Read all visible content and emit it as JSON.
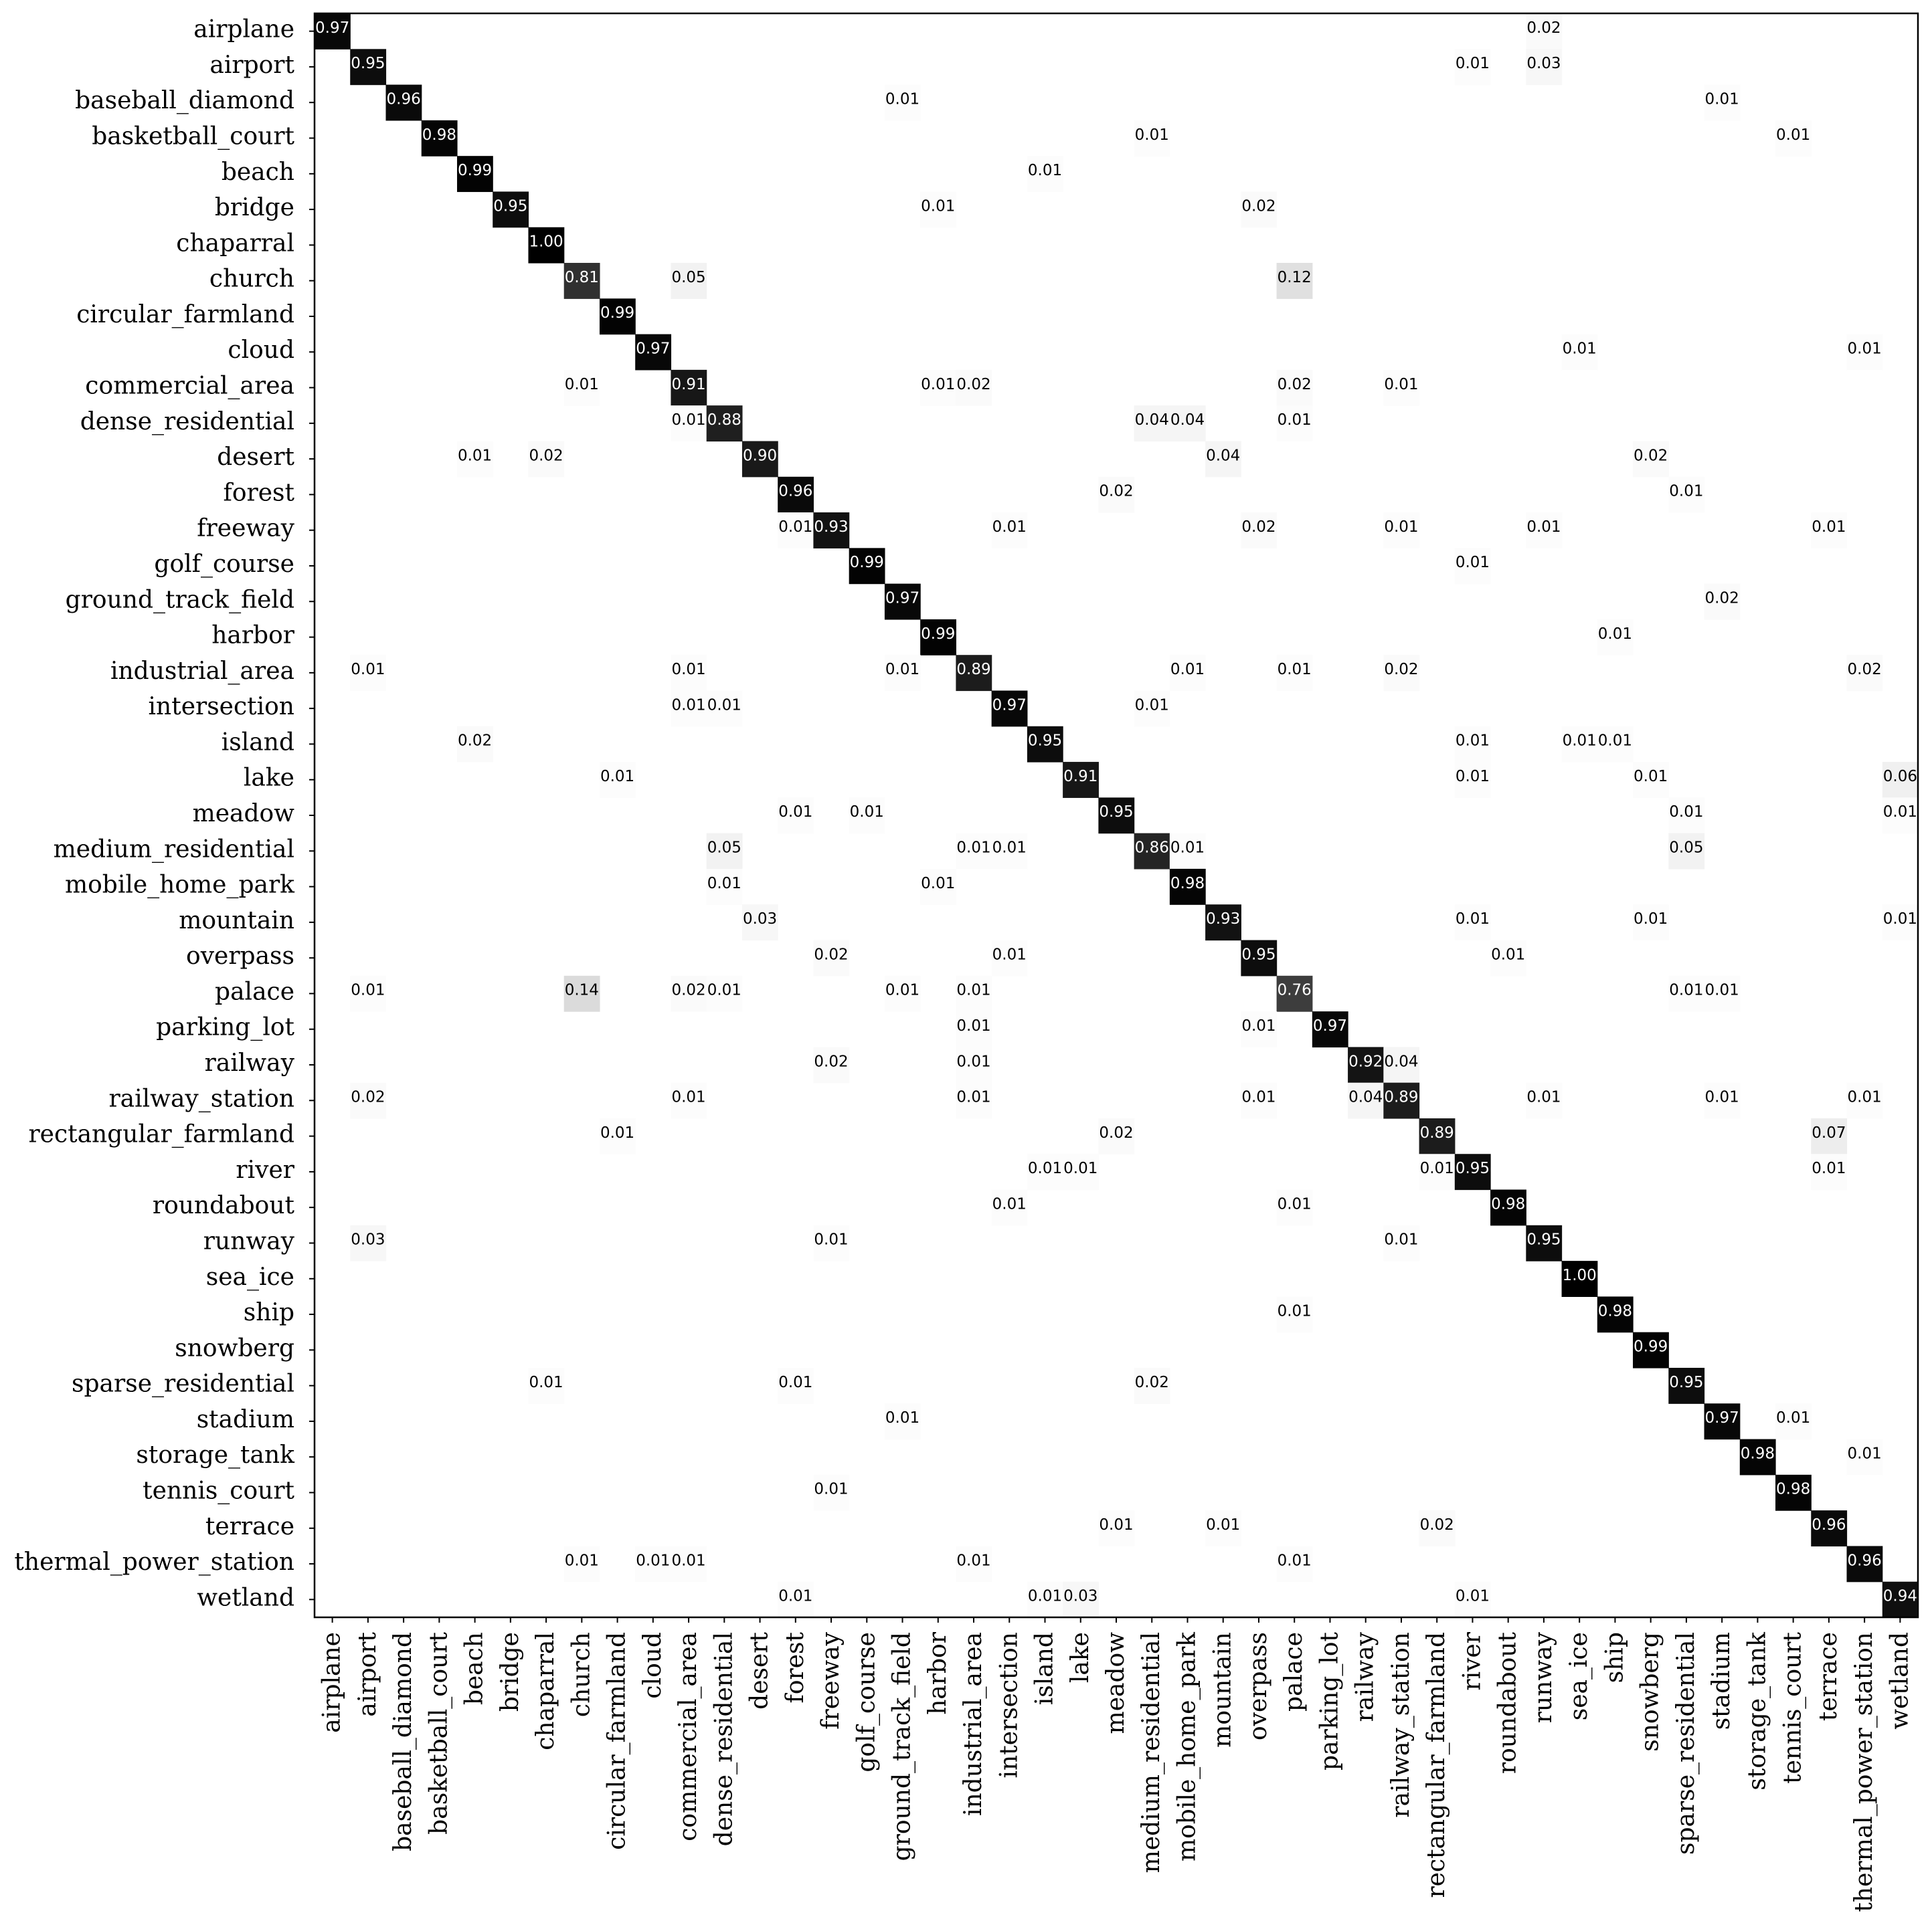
{
  "chart_data": {
    "type": "heatmap",
    "title": "",
    "xlabel": "",
    "ylabel": "",
    "value_range": [
      0,
      1
    ],
    "colormap": "white-to-black (Greys)",
    "labels": [
      "airplane",
      "airport",
      "baseball_diamond",
      "basketball_court",
      "beach",
      "bridge",
      "chaparral",
      "church",
      "circular_farmland",
      "cloud",
      "commercial_area",
      "dense_residential",
      "desert",
      "forest",
      "freeway",
      "golf_course",
      "ground_track_field",
      "harbor",
      "industrial_area",
      "intersection",
      "island",
      "lake",
      "meadow",
      "medium_residential",
      "mobile_home_park",
      "mountain",
      "overpass",
      "palace",
      "parking_lot",
      "railway",
      "railway_station",
      "rectangular_farmland",
      "river",
      "roundabout",
      "runway",
      "sea_ice",
      "ship",
      "snowberg",
      "sparse_residential",
      "stadium",
      "storage_tank",
      "tennis_court",
      "terrace",
      "thermal_power_station",
      "wetland"
    ],
    "cells": [
      {
        "r": 0,
        "c": 0,
        "v": 0.97
      },
      {
        "r": 0,
        "c": 34,
        "v": 0.02
      },
      {
        "r": 1,
        "c": 1,
        "v": 0.95
      },
      {
        "r": 1,
        "c": 32,
        "v": 0.01
      },
      {
        "r": 1,
        "c": 34,
        "v": 0.03
      },
      {
        "r": 2,
        "c": 2,
        "v": 0.96
      },
      {
        "r": 2,
        "c": 16,
        "v": 0.01
      },
      {
        "r": 2,
        "c": 39,
        "v": 0.01
      },
      {
        "r": 3,
        "c": 3,
        "v": 0.98
      },
      {
        "r": 3,
        "c": 23,
        "v": 0.01
      },
      {
        "r": 3,
        "c": 41,
        "v": 0.01
      },
      {
        "r": 4,
        "c": 4,
        "v": 0.99
      },
      {
        "r": 4,
        "c": 20,
        "v": 0.01
      },
      {
        "r": 5,
        "c": 5,
        "v": 0.95
      },
      {
        "r": 5,
        "c": 17,
        "v": 0.01
      },
      {
        "r": 5,
        "c": 26,
        "v": 0.02
      },
      {
        "r": 6,
        "c": 6,
        "v": 1.0
      },
      {
        "r": 7,
        "c": 7,
        "v": 0.81
      },
      {
        "r": 7,
        "c": 10,
        "v": 0.05
      },
      {
        "r": 7,
        "c": 27,
        "v": 0.12
      },
      {
        "r": 8,
        "c": 8,
        "v": 0.99
      },
      {
        "r": 9,
        "c": 9,
        "v": 0.97
      },
      {
        "r": 9,
        "c": 35,
        "v": 0.01
      },
      {
        "r": 9,
        "c": 43,
        "v": 0.01
      },
      {
        "r": 10,
        "c": 7,
        "v": 0.01
      },
      {
        "r": 10,
        "c": 10,
        "v": 0.91
      },
      {
        "r": 10,
        "c": 17,
        "v": 0.01
      },
      {
        "r": 10,
        "c": 18,
        "v": 0.02
      },
      {
        "r": 10,
        "c": 27,
        "v": 0.02
      },
      {
        "r": 10,
        "c": 30,
        "v": 0.01
      },
      {
        "r": 11,
        "c": 10,
        "v": 0.01
      },
      {
        "r": 11,
        "c": 11,
        "v": 0.88
      },
      {
        "r": 11,
        "c": 23,
        "v": 0.04
      },
      {
        "r": 11,
        "c": 24,
        "v": 0.04
      },
      {
        "r": 11,
        "c": 27,
        "v": 0.01
      },
      {
        "r": 12,
        "c": 4,
        "v": 0.01
      },
      {
        "r": 12,
        "c": 6,
        "v": 0.02
      },
      {
        "r": 12,
        "c": 12,
        "v": 0.9
      },
      {
        "r": 12,
        "c": 25,
        "v": 0.04
      },
      {
        "r": 12,
        "c": 37,
        "v": 0.02
      },
      {
        "r": 13,
        "c": 13,
        "v": 0.96
      },
      {
        "r": 13,
        "c": 22,
        "v": 0.02
      },
      {
        "r": 13,
        "c": 38,
        "v": 0.01
      },
      {
        "r": 14,
        "c": 13,
        "v": 0.01
      },
      {
        "r": 14,
        "c": 14,
        "v": 0.93
      },
      {
        "r": 14,
        "c": 19,
        "v": 0.01
      },
      {
        "r": 14,
        "c": 26,
        "v": 0.02
      },
      {
        "r": 14,
        "c": 30,
        "v": 0.01
      },
      {
        "r": 14,
        "c": 34,
        "v": 0.01
      },
      {
        "r": 14,
        "c": 42,
        "v": 0.01
      },
      {
        "r": 15,
        "c": 15,
        "v": 0.99
      },
      {
        "r": 15,
        "c": 32,
        "v": 0.01
      },
      {
        "r": 16,
        "c": 16,
        "v": 0.97
      },
      {
        "r": 16,
        "c": 39,
        "v": 0.02
      },
      {
        "r": 17,
        "c": 17,
        "v": 0.99
      },
      {
        "r": 17,
        "c": 36,
        "v": 0.01
      },
      {
        "r": 18,
        "c": 1,
        "v": 0.01
      },
      {
        "r": 18,
        "c": 10,
        "v": 0.01
      },
      {
        "r": 18,
        "c": 16,
        "v": 0.01
      },
      {
        "r": 18,
        "c": 18,
        "v": 0.89
      },
      {
        "r": 18,
        "c": 24,
        "v": 0.01
      },
      {
        "r": 18,
        "c": 27,
        "v": 0.01
      },
      {
        "r": 18,
        "c": 30,
        "v": 0.02
      },
      {
        "r": 18,
        "c": 43,
        "v": 0.02
      },
      {
        "r": 19,
        "c": 10,
        "v": 0.01
      },
      {
        "r": 19,
        "c": 11,
        "v": 0.01
      },
      {
        "r": 19,
        "c": 19,
        "v": 0.97
      },
      {
        "r": 19,
        "c": 23,
        "v": 0.01
      },
      {
        "r": 20,
        "c": 4,
        "v": 0.02
      },
      {
        "r": 20,
        "c": 20,
        "v": 0.95
      },
      {
        "r": 20,
        "c": 32,
        "v": 0.01
      },
      {
        "r": 20,
        "c": 35,
        "v": 0.01
      },
      {
        "r": 20,
        "c": 36,
        "v": 0.01
      },
      {
        "r": 21,
        "c": 8,
        "v": 0.01
      },
      {
        "r": 21,
        "c": 21,
        "v": 0.91
      },
      {
        "r": 21,
        "c": 32,
        "v": 0.01
      },
      {
        "r": 21,
        "c": 37,
        "v": 0.01
      },
      {
        "r": 21,
        "c": 44,
        "v": 0.06
      },
      {
        "r": 22,
        "c": 13,
        "v": 0.01
      },
      {
        "r": 22,
        "c": 15,
        "v": 0.01
      },
      {
        "r": 22,
        "c": 22,
        "v": 0.95
      },
      {
        "r": 22,
        "c": 38,
        "v": 0.01
      },
      {
        "r": 22,
        "c": 44,
        "v": 0.01
      },
      {
        "r": 23,
        "c": 11,
        "v": 0.05
      },
      {
        "r": 23,
        "c": 18,
        "v": 0.01
      },
      {
        "r": 23,
        "c": 19,
        "v": 0.01
      },
      {
        "r": 23,
        "c": 23,
        "v": 0.86
      },
      {
        "r": 23,
        "c": 24,
        "v": 0.01
      },
      {
        "r": 23,
        "c": 38,
        "v": 0.05
      },
      {
        "r": 24,
        "c": 11,
        "v": 0.01
      },
      {
        "r": 24,
        "c": 17,
        "v": 0.01
      },
      {
        "r": 24,
        "c": 24,
        "v": 0.98
      },
      {
        "r": 25,
        "c": 12,
        "v": 0.03
      },
      {
        "r": 25,
        "c": 25,
        "v": 0.93
      },
      {
        "r": 25,
        "c": 32,
        "v": 0.01
      },
      {
        "r": 25,
        "c": 37,
        "v": 0.01
      },
      {
        "r": 25,
        "c": 44,
        "v": 0.01
      },
      {
        "r": 26,
        "c": 14,
        "v": 0.02
      },
      {
        "r": 26,
        "c": 19,
        "v": 0.01
      },
      {
        "r": 26,
        "c": 26,
        "v": 0.95
      },
      {
        "r": 26,
        "c": 33,
        "v": 0.01
      },
      {
        "r": 27,
        "c": 1,
        "v": 0.01
      },
      {
        "r": 27,
        "c": 7,
        "v": 0.14
      },
      {
        "r": 27,
        "c": 10,
        "v": 0.02
      },
      {
        "r": 27,
        "c": 11,
        "v": 0.01
      },
      {
        "r": 27,
        "c": 16,
        "v": 0.01
      },
      {
        "r": 27,
        "c": 18,
        "v": 0.01
      },
      {
        "r": 27,
        "c": 27,
        "v": 0.76
      },
      {
        "r": 27,
        "c": 38,
        "v": 0.01
      },
      {
        "r": 27,
        "c": 39,
        "v": 0.01
      },
      {
        "r": 28,
        "c": 18,
        "v": 0.01
      },
      {
        "r": 28,
        "c": 26,
        "v": 0.01
      },
      {
        "r": 28,
        "c": 28,
        "v": 0.97
      },
      {
        "r": 29,
        "c": 14,
        "v": 0.02
      },
      {
        "r": 29,
        "c": 18,
        "v": 0.01
      },
      {
        "r": 29,
        "c": 29,
        "v": 0.92
      },
      {
        "r": 29,
        "c": 30,
        "v": 0.04
      },
      {
        "r": 30,
        "c": 1,
        "v": 0.02
      },
      {
        "r": 30,
        "c": 10,
        "v": 0.01
      },
      {
        "r": 30,
        "c": 18,
        "v": 0.01
      },
      {
        "r": 30,
        "c": 26,
        "v": 0.01
      },
      {
        "r": 30,
        "c": 29,
        "v": 0.04
      },
      {
        "r": 30,
        "c": 30,
        "v": 0.89
      },
      {
        "r": 30,
        "c": 34,
        "v": 0.01
      },
      {
        "r": 30,
        "c": 39,
        "v": 0.01
      },
      {
        "r": 30,
        "c": 43,
        "v": 0.01
      },
      {
        "r": 31,
        "c": 8,
        "v": 0.01
      },
      {
        "r": 31,
        "c": 22,
        "v": 0.02
      },
      {
        "r": 31,
        "c": 31,
        "v": 0.89
      },
      {
        "r": 31,
        "c": 42,
        "v": 0.07
      },
      {
        "r": 32,
        "c": 20,
        "v": 0.01
      },
      {
        "r": 32,
        "c": 21,
        "v": 0.01
      },
      {
        "r": 32,
        "c": 31,
        "v": 0.01
      },
      {
        "r": 32,
        "c": 32,
        "v": 0.95
      },
      {
        "r": 32,
        "c": 42,
        "v": 0.01
      },
      {
        "r": 33,
        "c": 19,
        "v": 0.01
      },
      {
        "r": 33,
        "c": 27,
        "v": 0.01
      },
      {
        "r": 33,
        "c": 33,
        "v": 0.98
      },
      {
        "r": 34,
        "c": 1,
        "v": 0.03
      },
      {
        "r": 34,
        "c": 14,
        "v": 0.01
      },
      {
        "r": 34,
        "c": 30,
        "v": 0.01
      },
      {
        "r": 34,
        "c": 34,
        "v": 0.95
      },
      {
        "r": 35,
        "c": 35,
        "v": 1.0
      },
      {
        "r": 36,
        "c": 27,
        "v": 0.01
      },
      {
        "r": 36,
        "c": 36,
        "v": 0.98
      },
      {
        "r": 37,
        "c": 37,
        "v": 0.99
      },
      {
        "r": 38,
        "c": 6,
        "v": 0.01
      },
      {
        "r": 38,
        "c": 13,
        "v": 0.01
      },
      {
        "r": 38,
        "c": 23,
        "v": 0.02
      },
      {
        "r": 38,
        "c": 38,
        "v": 0.95
      },
      {
        "r": 39,
        "c": 16,
        "v": 0.01
      },
      {
        "r": 39,
        "c": 39,
        "v": 0.97
      },
      {
        "r": 39,
        "c": 41,
        "v": 0.01
      },
      {
        "r": 40,
        "c": 40,
        "v": 0.98
      },
      {
        "r": 40,
        "c": 43,
        "v": 0.01
      },
      {
        "r": 41,
        "c": 14,
        "v": 0.01
      },
      {
        "r": 41,
        "c": 41,
        "v": 0.98
      },
      {
        "r": 42,
        "c": 22,
        "v": 0.01
      },
      {
        "r": 42,
        "c": 25,
        "v": 0.01
      },
      {
        "r": 42,
        "c": 31,
        "v": 0.02
      },
      {
        "r": 42,
        "c": 42,
        "v": 0.96
      },
      {
        "r": 43,
        "c": 7,
        "v": 0.01
      },
      {
        "r": 43,
        "c": 9,
        "v": 0.01
      },
      {
        "r": 43,
        "c": 10,
        "v": 0.01
      },
      {
        "r": 43,
        "c": 18,
        "v": 0.01
      },
      {
        "r": 43,
        "c": 27,
        "v": 0.01
      },
      {
        "r": 43,
        "c": 43,
        "v": 0.96
      },
      {
        "r": 44,
        "c": 13,
        "v": 0.01
      },
      {
        "r": 44,
        "c": 20,
        "v": 0.01
      },
      {
        "r": 44,
        "c": 21,
        "v": 0.03
      },
      {
        "r": 44,
        "c": 32,
        "v": 0.01
      },
      {
        "r": 44,
        "c": 44,
        "v": 0.94
      }
    ]
  }
}
